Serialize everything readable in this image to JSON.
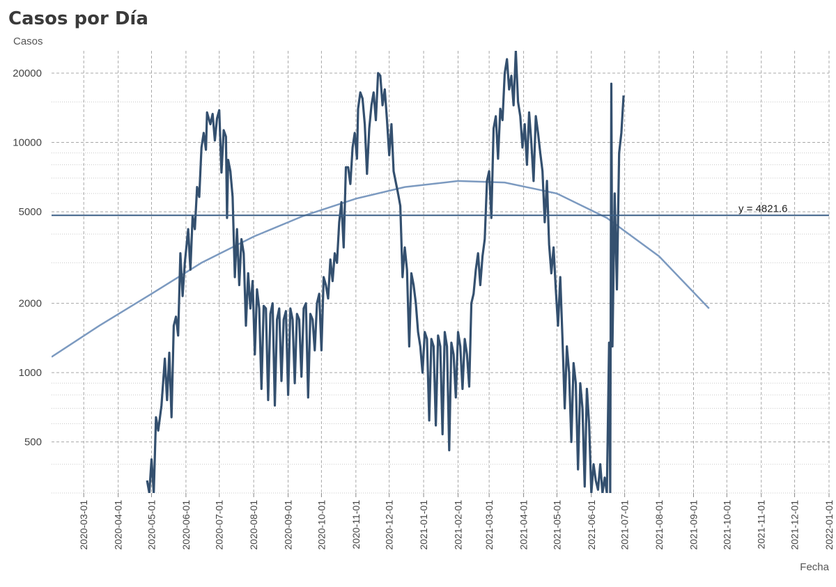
{
  "chart_data": {
    "type": "line",
    "title": "Casos por Día",
    "xlabel": "Fecha",
    "ylabel": "Casos",
    "yscale": "log",
    "ylim": [
      300,
      25000
    ],
    "xlim": [
      "2020-02-01",
      "2022-01-01"
    ],
    "grid": true,
    "y_ticks": [
      500,
      1000,
      2000,
      5000,
      10000,
      20000
    ],
    "x_ticks": [
      "2020-03-01",
      "2020-04-01",
      "2020-05-01",
      "2020-06-01",
      "2020-07-01",
      "2020-08-01",
      "2020-09-01",
      "2020-10-01",
      "2020-11-01",
      "2020-12-01",
      "2021-01-01",
      "2021-02-01",
      "2021-03-01",
      "2021-04-01",
      "2021-05-01",
      "2021-06-01",
      "2021-07-01",
      "2021-08-01",
      "2021-09-01",
      "2021-10-01",
      "2021-11-01",
      "2021-12-01",
      "2022-01-01"
    ],
    "reference_line": {
      "y": 4821.6,
      "label": "y = 4821.6",
      "color": "#3b5f86"
    },
    "series": [
      {
        "color": "#34506f",
        "points": [
          [
            "2020-04-27",
            340
          ],
          [
            "2020-04-29",
            300
          ],
          [
            "2020-05-01",
            420
          ],
          [
            "2020-05-03",
            300
          ],
          [
            "2020-05-05",
            640
          ],
          [
            "2020-05-07",
            560
          ],
          [
            "2020-05-10",
            720
          ],
          [
            "2020-05-13",
            1150
          ],
          [
            "2020-05-15",
            760
          ],
          [
            "2020-05-17",
            1220
          ],
          [
            "2020-05-19",
            640
          ],
          [
            "2020-05-21",
            1600
          ],
          [
            "2020-05-23",
            1750
          ],
          [
            "2020-05-25",
            1450
          ],
          [
            "2020-05-27",
            3300
          ],
          [
            "2020-05-29",
            2150
          ],
          [
            "2020-05-31",
            3000
          ],
          [
            "2020-06-03",
            4200
          ],
          [
            "2020-06-05",
            2800
          ],
          [
            "2020-06-07",
            4800
          ],
          [
            "2020-06-09",
            4200
          ],
          [
            "2020-06-11",
            6400
          ],
          [
            "2020-06-13",
            5800
          ],
          [
            "2020-06-15",
            9500
          ],
          [
            "2020-06-17",
            11000
          ],
          [
            "2020-06-19",
            9300
          ],
          [
            "2020-06-20",
            13500
          ],
          [
            "2020-06-23",
            12000
          ],
          [
            "2020-06-25",
            13300
          ],
          [
            "2020-06-27",
            10200
          ],
          [
            "2020-06-29",
            12700
          ],
          [
            "2020-07-01",
            13800
          ],
          [
            "2020-07-03",
            7400
          ],
          [
            "2020-07-05",
            11300
          ],
          [
            "2020-07-07",
            10600
          ],
          [
            "2020-07-08",
            4700
          ],
          [
            "2020-07-09",
            8400
          ],
          [
            "2020-07-11",
            7500
          ],
          [
            "2020-07-13",
            5800
          ],
          [
            "2020-07-15",
            2600
          ],
          [
            "2020-07-17",
            4200
          ],
          [
            "2020-07-19",
            2400
          ],
          [
            "2020-07-21",
            3800
          ],
          [
            "2020-07-23",
            3300
          ],
          [
            "2020-07-25",
            1600
          ],
          [
            "2020-07-27",
            2700
          ],
          [
            "2020-07-29",
            1900
          ],
          [
            "2020-07-31",
            2500
          ],
          [
            "2020-08-02",
            1200
          ],
          [
            "2020-08-04",
            2300
          ],
          [
            "2020-08-06",
            1900
          ],
          [
            "2020-08-08",
            850
          ],
          [
            "2020-08-10",
            1950
          ],
          [
            "2020-08-12",
            1900
          ],
          [
            "2020-08-14",
            760
          ],
          [
            "2020-08-16",
            1800
          ],
          [
            "2020-08-18",
            2000
          ],
          [
            "2020-08-20",
            720
          ],
          [
            "2020-08-22",
            1700
          ],
          [
            "2020-08-24",
            1900
          ],
          [
            "2020-08-26",
            920
          ],
          [
            "2020-08-28",
            1700
          ],
          [
            "2020-08-30",
            1850
          ],
          [
            "2020-09-01",
            800
          ],
          [
            "2020-09-03",
            1900
          ],
          [
            "2020-09-05",
            1700
          ],
          [
            "2020-09-07",
            900
          ],
          [
            "2020-09-09",
            1800
          ],
          [
            "2020-09-11",
            1700
          ],
          [
            "2020-09-13",
            960
          ],
          [
            "2020-09-15",
            1900
          ],
          [
            "2020-09-17",
            2000
          ],
          [
            "2020-09-19",
            780
          ],
          [
            "2020-09-21",
            1800
          ],
          [
            "2020-09-23",
            1700
          ],
          [
            "2020-09-25",
            1250
          ],
          [
            "2020-09-27",
            2000
          ],
          [
            "2020-09-29",
            2200
          ],
          [
            "2020-10-01",
            1250
          ],
          [
            "2020-10-03",
            2600
          ],
          [
            "2020-10-05",
            2400
          ],
          [
            "2020-10-07",
            2100
          ],
          [
            "2020-10-09",
            3100
          ],
          [
            "2020-10-11",
            2500
          ],
          [
            "2020-10-13",
            3300
          ],
          [
            "2020-10-15",
            3000
          ],
          [
            "2020-10-17",
            4500
          ],
          [
            "2020-10-19",
            5500
          ],
          [
            "2020-10-21",
            3500
          ],
          [
            "2020-10-23",
            7800
          ],
          [
            "2020-10-25",
            7800
          ],
          [
            "2020-10-27",
            6600
          ],
          [
            "2020-10-29",
            9500
          ],
          [
            "2020-10-31",
            11000
          ],
          [
            "2020-11-02",
            8500
          ],
          [
            "2020-11-03",
            14000
          ],
          [
            "2020-11-05",
            16500
          ],
          [
            "2020-11-07",
            15500
          ],
          [
            "2020-11-09",
            12000
          ],
          [
            "2020-11-11",
            7300
          ],
          [
            "2020-11-13",
            11500
          ],
          [
            "2020-11-15",
            14500
          ],
          [
            "2020-11-17",
            16500
          ],
          [
            "2020-11-19",
            12500
          ],
          [
            "2020-11-21",
            20000
          ],
          [
            "2020-11-23",
            19500
          ],
          [
            "2020-11-25",
            14500
          ],
          [
            "2020-11-27",
            17000
          ],
          [
            "2020-11-29",
            12500
          ],
          [
            "2020-12-01",
            8800
          ],
          [
            "2020-12-03",
            12000
          ],
          [
            "2020-12-05",
            7500
          ],
          [
            "2020-12-07",
            6700
          ],
          [
            "2020-12-09",
            6000
          ],
          [
            "2020-12-11",
            5300
          ],
          [
            "2020-12-13",
            2600
          ],
          [
            "2020-12-15",
            3500
          ],
          [
            "2020-12-17",
            2800
          ],
          [
            "2020-12-19",
            1300
          ],
          [
            "2020-12-21",
            2700
          ],
          [
            "2020-12-23",
            2400
          ],
          [
            "2020-12-25",
            2000
          ],
          [
            "2020-12-27",
            1500
          ],
          [
            "2020-12-29",
            1300
          ],
          [
            "2020-12-31",
            1000
          ],
          [
            "2021-01-02",
            1500
          ],
          [
            "2021-01-04",
            1400
          ],
          [
            "2021-01-06",
            620
          ],
          [
            "2021-01-08",
            1400
          ],
          [
            "2021-01-10",
            1300
          ],
          [
            "2021-01-12",
            590
          ],
          [
            "2021-01-14",
            1450
          ],
          [
            "2021-01-16",
            1300
          ],
          [
            "2021-01-18",
            540
          ],
          [
            "2021-01-20",
            1500
          ],
          [
            "2021-01-22",
            1300
          ],
          [
            "2021-01-24",
            460
          ],
          [
            "2021-01-26",
            1350
          ],
          [
            "2021-01-28",
            1200
          ],
          [
            "2021-01-30",
            780
          ],
          [
            "2021-02-01",
            1500
          ],
          [
            "2021-02-03",
            1300
          ],
          [
            "2021-02-05",
            850
          ],
          [
            "2021-02-07",
            1400
          ],
          [
            "2021-02-09",
            1200
          ],
          [
            "2021-02-11",
            870
          ],
          [
            "2021-02-13",
            2000
          ],
          [
            "2021-02-15",
            2200
          ],
          [
            "2021-02-17",
            2800
          ],
          [
            "2021-02-19",
            3300
          ],
          [
            "2021-02-21",
            2400
          ],
          [
            "2021-02-23",
            3200
          ],
          [
            "2021-02-25",
            3800
          ],
          [
            "2021-02-27",
            6800
          ],
          [
            "2021-03-01",
            7500
          ],
          [
            "2021-03-03",
            4700
          ],
          [
            "2021-03-05",
            11500
          ],
          [
            "2021-03-07",
            13000
          ],
          [
            "2021-03-09",
            8500
          ],
          [
            "2021-03-11",
            14000
          ],
          [
            "2021-03-13",
            12500
          ],
          [
            "2021-03-15",
            20000
          ],
          [
            "2021-03-17",
            23000
          ],
          [
            "2021-03-19",
            17000
          ],
          [
            "2021-03-21",
            19500
          ],
          [
            "2021-03-23",
            14500
          ],
          [
            "2021-03-25",
            25000
          ],
          [
            "2021-03-27",
            15000
          ],
          [
            "2021-03-29",
            13000
          ],
          [
            "2021-03-31",
            9500
          ],
          [
            "2021-04-02",
            12000
          ],
          [
            "2021-04-04",
            8000
          ],
          [
            "2021-04-06",
            13500
          ],
          [
            "2021-04-08",
            10000
          ],
          [
            "2021-04-10",
            6800
          ],
          [
            "2021-04-12",
            13000
          ],
          [
            "2021-04-14",
            11000
          ],
          [
            "2021-04-16",
            9000
          ],
          [
            "2021-04-18",
            7500
          ],
          [
            "2021-04-20",
            4500
          ],
          [
            "2021-04-22",
            6800
          ],
          [
            "2021-04-24",
            3600
          ],
          [
            "2021-04-26",
            2700
          ],
          [
            "2021-04-28",
            3500
          ],
          [
            "2021-04-30",
            2300
          ],
          [
            "2021-05-02",
            1600
          ],
          [
            "2021-05-04",
            2600
          ],
          [
            "2021-05-06",
            1400
          ],
          [
            "2021-05-08",
            700
          ],
          [
            "2021-05-10",
            1300
          ],
          [
            "2021-05-12",
            1000
          ],
          [
            "2021-05-14",
            500
          ],
          [
            "2021-05-16",
            1100
          ],
          [
            "2021-05-18",
            900
          ],
          [
            "2021-05-20",
            380
          ],
          [
            "2021-05-22",
            900
          ],
          [
            "2021-05-24",
            700
          ],
          [
            "2021-05-26",
            320
          ],
          [
            "2021-05-28",
            850
          ],
          [
            "2021-05-30",
            600
          ],
          [
            "2021-06-01",
            300
          ],
          [
            "2021-06-03",
            400
          ],
          [
            "2021-06-05",
            340
          ],
          [
            "2021-06-07",
            310
          ],
          [
            "2021-06-09",
            400
          ],
          [
            "2021-06-11",
            300
          ],
          [
            "2021-06-13",
            350
          ],
          [
            "2021-06-15",
            300
          ],
          [
            "2021-06-17",
            1350
          ],
          [
            "2021-06-18",
            300
          ],
          [
            "2021-06-19",
            18000
          ],
          [
            "2021-06-20",
            1300
          ],
          [
            "2021-06-22",
            6000
          ],
          [
            "2021-06-24",
            2300
          ],
          [
            "2021-06-26",
            9000
          ],
          [
            "2021-06-28",
            11000
          ],
          [
            "2021-06-30",
            16000
          ]
        ]
      },
      {
        "color": "#7c9ac0",
        "points": [
          [
            "2020-02-01",
            1170
          ],
          [
            "2020-03-15",
            1600
          ],
          [
            "2020-05-01",
            2200
          ],
          [
            "2020-06-15",
            3000
          ],
          [
            "2020-08-01",
            3900
          ],
          [
            "2020-09-15",
            4800
          ],
          [
            "2020-11-01",
            5700
          ],
          [
            "2020-12-15",
            6400
          ],
          [
            "2021-02-01",
            6800
          ],
          [
            "2021-03-15",
            6700
          ],
          [
            "2021-05-01",
            6000
          ],
          [
            "2021-06-15",
            4700
          ],
          [
            "2021-08-01",
            3200
          ],
          [
            "2021-09-15",
            1900
          ]
        ]
      }
    ]
  }
}
